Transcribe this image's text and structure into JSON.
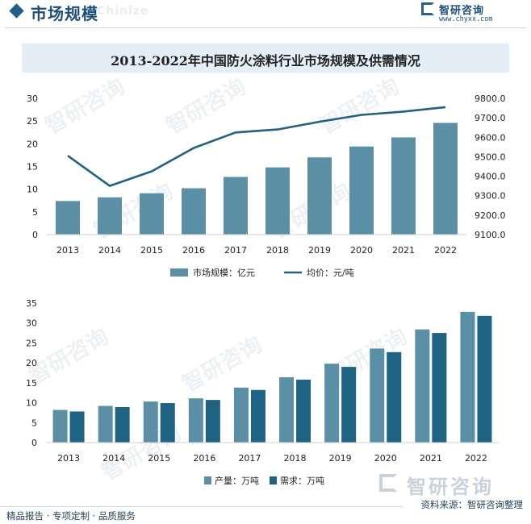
{
  "header": {
    "title": "市场规模",
    "ghost": "Chinize",
    "brand_name": "智研咨询",
    "brand_url": "www.chyxx.com"
  },
  "watermark": "智研咨询",
  "footer": {
    "left": "精品报告 · 专项定制 · 品质服务",
    "source": "资料来源：智研咨询整理",
    "logo_text": "智研咨询"
  },
  "colors": {
    "bar_primary": "#5b8fa5",
    "bar_secondary": "#1f6384",
    "line": "#1f6384",
    "axis_text": "#222222"
  },
  "chart_data": [
    {
      "type": "bar+line",
      "title": "2013-2022年中国防火涂料行业市场规模及供需情况",
      "categories": [
        "2013",
        "2014",
        "2015",
        "2016",
        "2017",
        "2018",
        "2019",
        "2020",
        "2021",
        "2022"
      ],
      "left_axis": {
        "ticks": [
          "0",
          "5",
          "10",
          "15",
          "20",
          "25",
          "30"
        ],
        "range": [
          0,
          30
        ]
      },
      "right_axis": {
        "ticks": [
          "9100.0",
          "9200.0",
          "9300.0",
          "9400.0",
          "9500.0",
          "9600.0",
          "9700.0",
          "9800.0"
        ],
        "range": [
          9100,
          9800
        ]
      },
      "series": [
        {
          "name": "市场规模：亿元",
          "kind": "bar",
          "axis": "left",
          "values": [
            7.4,
            8.2,
            9.1,
            10.2,
            12.7,
            14.8,
            17.0,
            19.4,
            21.4,
            24.6
          ]
        },
        {
          "name": "均价：元/吨",
          "kind": "line",
          "axis": "right",
          "values": [
            9505,
            9350,
            9425,
            9545,
            9625,
            9640,
            9680,
            9715,
            9732,
            9755
          ]
        }
      ],
      "legend_position": "bottom",
      "grid": false
    },
    {
      "type": "bar",
      "categories": [
        "2013",
        "2014",
        "2015",
        "2016",
        "2017",
        "2018",
        "2019",
        "2020",
        "2021",
        "2022"
      ],
      "y_axis": {
        "ticks": [
          "0",
          "5",
          "10",
          "15",
          "20",
          "25",
          "30",
          "35"
        ],
        "range": [
          0,
          35
        ]
      },
      "series": [
        {
          "name": "产量：万吨",
          "values": [
            8.2,
            9.2,
            10.3,
            11.1,
            13.8,
            16.4,
            19.8,
            23.6,
            28.4,
            32.8
          ]
        },
        {
          "name": "需求：万吨",
          "values": [
            7.8,
            8.9,
            9.9,
            10.7,
            13.2,
            15.8,
            19.0,
            22.7,
            27.5,
            31.8
          ]
        }
      ],
      "legend_position": "bottom",
      "grid": false
    }
  ]
}
